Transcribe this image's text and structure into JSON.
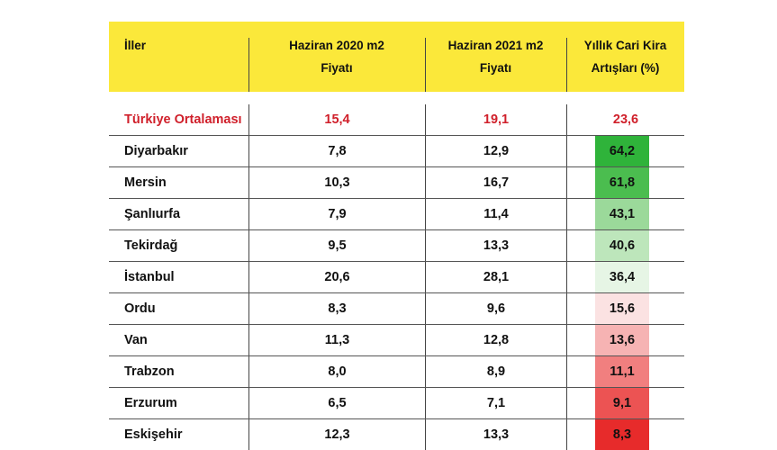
{
  "header": {
    "col1": "İller",
    "col2_line1": "Haziran 2020 m2",
    "col2_line2": "Fiyatı",
    "col3_line1": "Haziran 2021 m2",
    "col3_line2": "Fiyatı",
    "col4_line1": "Yıllık Cari Kira",
    "col4_line2": "Artışları (%)"
  },
  "average": {
    "name": "Türkiye Ortalaması",
    "p2020": "15,4",
    "p2021": "19,1",
    "increase": "23,6"
  },
  "rows": [
    {
      "name": "Diyarbakır",
      "p2020": "7,8",
      "p2021": "12,9",
      "increase": "64,2",
      "color": "#2fb33a"
    },
    {
      "name": "Mersin",
      "p2020": "10,3",
      "p2021": "16,7",
      "increase": "61,8",
      "color": "#4bbd4f"
    },
    {
      "name": "Şanlıurfa",
      "p2020": "7,9",
      "p2021": "11,4",
      "increase": "43,1",
      "color": "#9bd99a"
    },
    {
      "name": "Tekirdağ",
      "p2020": "9,5",
      "p2021": "13,3",
      "increase": "40,6",
      "color": "#bde6bb"
    },
    {
      "name": "İstanbul",
      "p2020": "20,6",
      "p2021": "28,1",
      "increase": "36,4",
      "color": "#e6f5e5"
    },
    {
      "name": "Ordu",
      "p2020": "8,3",
      "p2021": "9,6",
      "increase": "15,6",
      "color": "#fbe2e2"
    },
    {
      "name": "Van",
      "p2020": "11,3",
      "p2021": "12,8",
      "increase": "13,6",
      "color": "#f6b3b3"
    },
    {
      "name": "Trabzon",
      "p2020": "8,0",
      "p2021": "8,9",
      "increase": "11,1",
      "color": "#f17f7f"
    },
    {
      "name": "Erzurum",
      "p2020": "6,5",
      "p2021": "7,1",
      "increase": "9,1",
      "color": "#ec5353"
    },
    {
      "name": "Eskişehir",
      "p2020": "12,3",
      "p2021": "13,3",
      "increase": "8,3",
      "color": "#e72b2b"
    }
  ]
}
